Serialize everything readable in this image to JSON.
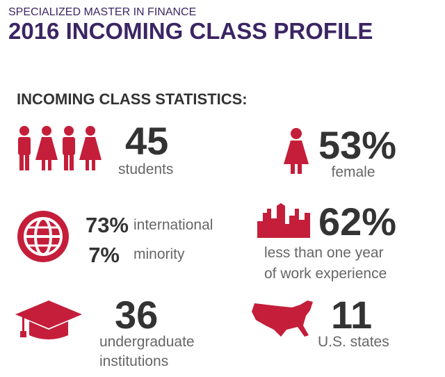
{
  "header": {
    "kicker": "SPECIALIZED MASTER IN FINANCE",
    "title": "2016 INCOMING CLASS PROFILE"
  },
  "section_title": "INCOMING CLASS STATISTICS:",
  "stats": [
    {
      "value": "45",
      "label_lines": [
        "students"
      ]
    },
    {
      "value": "53%",
      "label_lines": [
        "female"
      ]
    },
    {
      "value": "73%",
      "label_lines": [
        "international"
      ]
    },
    {
      "value": "7%",
      "label_lines": [
        "minority"
      ]
    },
    {
      "value": "62%",
      "label_lines": [
        "less than one year",
        "of work experience"
      ]
    },
    {
      "value": "36",
      "label_lines": [
        "undergraduate",
        "institutions"
      ]
    },
    {
      "value": "11",
      "label_lines": [
        "U.S. states"
      ]
    }
  ]
}
